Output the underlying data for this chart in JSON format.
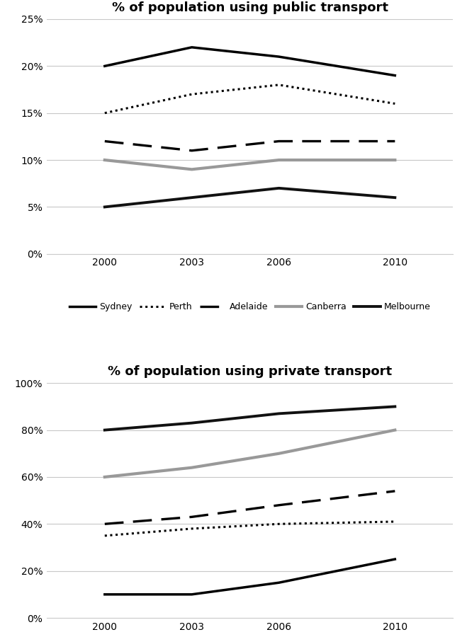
{
  "years": [
    2000,
    2003,
    2006,
    2010
  ],
  "public_transport": {
    "Sydney": [
      20,
      22,
      21,
      19
    ],
    "Perth": [
      15,
      17,
      18,
      16
    ],
    "Adelaide": [
      12,
      11,
      12,
      12
    ],
    "Canberra": [
      10,
      9,
      10,
      10
    ],
    "Melbourne": [
      5,
      6,
      7,
      6
    ]
  },
  "private_transport": {
    "Sydney": [
      10,
      10,
      15,
      25
    ],
    "Perth": [
      35,
      38,
      40,
      41
    ],
    "Adelaide": [
      40,
      43,
      48,
      54
    ],
    "Canberra": [
      60,
      64,
      70,
      80
    ],
    "Melbourne": [
      80,
      83,
      87,
      90
    ]
  },
  "title1": "% of population using public transport",
  "title2": "% of population using private transport",
  "ylim1": [
    0,
    25
  ],
  "ylim2": [
    0,
    100
  ],
  "yticks1": [
    0,
    5,
    10,
    15,
    20,
    25
  ],
  "ytick_labels1": [
    "0%",
    "5%",
    "10%",
    "15%",
    "20%",
    "25%"
  ],
  "yticks2": [
    0,
    20,
    40,
    60,
    80,
    100
  ],
  "ytick_labels2": [
    "0%",
    "20%",
    "40%",
    "60%",
    "80%",
    "100%"
  ],
  "background_color": "#ffffff",
  "grid_color": "#c8c8c8"
}
